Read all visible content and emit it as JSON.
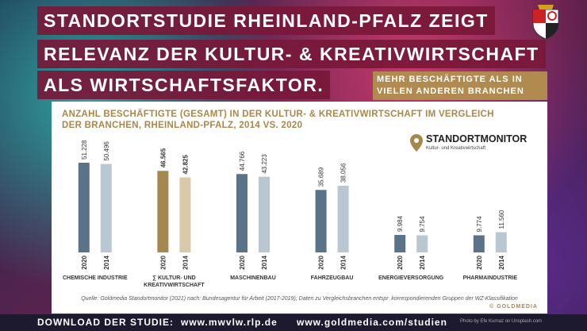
{
  "header": {
    "lines": [
      "STANDORTSTUDIE RHEINLAND-PFALZ ZEIGT",
      "RELEVANZ DER KULTUR- & KREATIVWIRTSCHAFT",
      "ALS WIRTSCHAFTSFAKTOR."
    ],
    "highlight": "MEHR BESCHÄFTIGTE ALS IN\nVIELEN ANDEREN BRANCHEN"
  },
  "chart_data": {
    "type": "bar",
    "title": "ANZAHL BESCHÄFTIGTE (GESAMT) IN DER KULTUR- & KREATIVWIRTSCHAFT IM VERGLEICH\nDER BRANCHEN, RHEINLAND-PFALZ, 2014 VS. 2020",
    "logo": {
      "name": "STANDORTMONITOR",
      "subtitle": "Kultur- und Kreativwirtschaft"
    },
    "categories": [
      "CHEMISCHE INDUSTRIE",
      "∑ KULTUR- UND\nKREATIVWIRTSCHAFT",
      "MASCHINENBAU",
      "FAHRZEUGBAU",
      "ENERGIEVERSORGUNG",
      "PHARMAINDUSTRIE"
    ],
    "highlight_index": 1,
    "series": [
      {
        "name": "2020",
        "color": "#5b7389",
        "highlight_color": "#a5884f",
        "values": [
          51228,
          46565,
          44766,
          35689,
          9984,
          9774
        ],
        "value_labels": [
          "51.228",
          "46.565",
          "44.766",
          "35.689",
          "9.984",
          "9.774"
        ]
      },
      {
        "name": "2014",
        "color": "#b9c7d3",
        "highlight_color": "#d9c9a8",
        "values": [
          50496,
          42825,
          43223,
          38056,
          9754,
          11560
        ],
        "value_labels": [
          "50.496",
          "42.825",
          "43.223",
          "38.056",
          "9.754",
          "11.560"
        ]
      }
    ],
    "source": "Quelle: Goldmedia Standortmonitor (2021) nach: Bundesagentur für Arbeit (2017-2019); Daten zu Vergleichsbranchen entspr. korrespondierenden Gruppen der WZ-Klassifikation",
    "copyright": "© GOLDMEDIA"
  },
  "footer": {
    "label": "DOWNLOAD DER STUDIE:",
    "links": [
      "www.mwvlw.rlp.de",
      "www.goldmedia.com/studien"
    ],
    "credit": "Photo by Efe Kurnaz on Unsplash.com"
  }
}
